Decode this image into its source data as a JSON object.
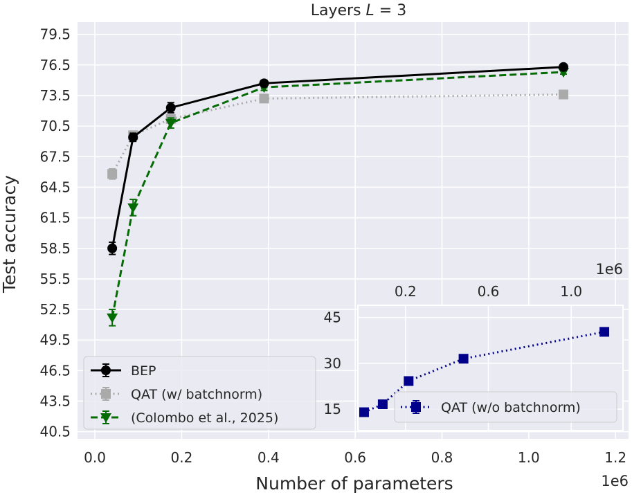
{
  "chart_data": [
    {
      "type": "line",
      "title_prefix": "Layers ",
      "title_var": "L",
      "title_suffix": " = 3",
      "xlabel": "Number of parameters",
      "ylabel": "Test accuracy",
      "x_offset_label": "1e6",
      "xlim": [
        -0.04,
        1.23
      ],
      "ylim": [
        39.8,
        80.7
      ],
      "x_ticks": [
        0.0,
        0.2,
        0.4,
        0.6,
        0.8,
        1.0,
        1.2
      ],
      "x_tick_labels": [
        "0.0",
        "0.2",
        "0.4",
        "0.6",
        "0.8",
        "1.0",
        "1.2"
      ],
      "y_ticks": [
        40.5,
        43.5,
        46.5,
        49.5,
        52.5,
        55.5,
        58.5,
        61.5,
        64.5,
        67.5,
        70.5,
        73.5,
        76.5,
        79.5
      ],
      "y_tick_labels": [
        "40.5",
        "43.5",
        "46.5",
        "49.5",
        "52.5",
        "55.5",
        "58.5",
        "61.5",
        "64.5",
        "67.5",
        "70.5",
        "73.5",
        "76.5",
        "79.5"
      ],
      "grid": true,
      "legend_position": "lower-left",
      "series": [
        {
          "name": "QAT (w/ batchnorm)",
          "color": "#aaaaaa",
          "linestyle": "dotted",
          "marker": "square",
          "x": [
            0.04,
            0.088,
            0.175,
            0.39,
            1.08
          ],
          "y": [
            65.8,
            69.6,
            71.2,
            73.2,
            73.6
          ],
          "err": [
            0.5,
            0.4,
            0.3,
            0.2,
            0.2
          ]
        },
        {
          "name": "(Colombo et al., 2025)",
          "color": "#056b05",
          "linestyle": "dashed",
          "marker": "triangle-down",
          "x": [
            0.04,
            0.088,
            0.175,
            0.39,
            1.08
          ],
          "y": [
            51.7,
            62.5,
            70.8,
            74.3,
            75.8
          ],
          "err": [
            0.8,
            0.8,
            0.5,
            0.3,
            0.2
          ]
        },
        {
          "name": "BEP",
          "color": "#000000",
          "linestyle": "solid",
          "marker": "circle",
          "x": [
            0.04,
            0.088,
            0.175,
            0.39,
            1.08
          ],
          "y": [
            58.5,
            69.4,
            72.3,
            74.7,
            76.3
          ],
          "err": [
            0.6,
            0.4,
            0.5,
            0.3,
            0.2
          ]
        }
      ],
      "legend_order": [
        "BEP",
        "QAT (w/ batchnorm)",
        "(Colombo et al., 2025)"
      ]
    },
    {
      "type": "line",
      "role": "inset",
      "x_offset_label": "1e6",
      "xlim": [
        -0.03,
        1.25
      ],
      "ylim": [
        8.0,
        49.0
      ],
      "x_ticks": [
        0.2,
        0.6,
        1.0
      ],
      "x_tick_labels": [
        "0.2",
        "0.6",
        "1.0"
      ],
      "x_axis_position": "top",
      "y_ticks": [
        15,
        30,
        45
      ],
      "y_tick_labels": [
        "15",
        "30",
        "45"
      ],
      "grid": true,
      "legend_position": "lower-right",
      "series": [
        {
          "name": "QAT (w/o batchnorm)",
          "color": "#00008b",
          "linestyle": "dotted",
          "marker": "square",
          "x": [
            0.0,
            0.09,
            0.215,
            0.48,
            1.16
          ],
          "y": [
            14.0,
            16.6,
            24.2,
            31.5,
            40.3
          ],
          "err": [
            0.4,
            0.4,
            0.5,
            0.4,
            0.4
          ]
        }
      ]
    }
  ]
}
